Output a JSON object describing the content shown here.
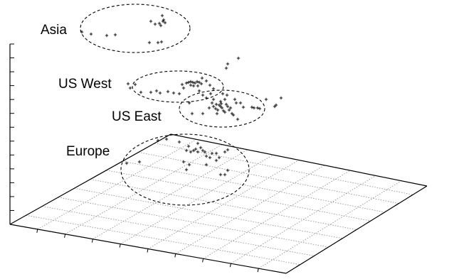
{
  "chart_data": {
    "type": "scatter",
    "variant": "3d-scatter-perspective",
    "grid": true,
    "z_axis_ticks": 13,
    "clusters": [
      {
        "name": "Asia",
        "points": [
          [
            115,
            45
          ],
          [
            128,
            48
          ],
          [
            150,
            50
          ],
          [
            162,
            49
          ],
          [
            212,
            30
          ],
          [
            218,
            34
          ],
          [
            224,
            33
          ],
          [
            228,
            22
          ],
          [
            229,
            30
          ],
          [
            230,
            28
          ],
          [
            226,
            36
          ],
          [
            232,
            32
          ],
          [
            210,
            60
          ],
          [
            222,
            60
          ],
          [
            227,
            59
          ]
        ]
      },
      {
        "name": "US West",
        "points": [
          [
            180,
            118
          ],
          [
            183,
            124
          ],
          [
            190,
            119
          ],
          [
            198,
            130
          ],
          [
            212,
            130
          ],
          [
            220,
            128
          ],
          [
            225,
            131
          ],
          [
            236,
            129
          ],
          [
            244,
            131
          ],
          [
            252,
            132
          ],
          [
            256,
            119
          ],
          [
            262,
            117
          ],
          [
            265,
            116
          ],
          [
            268,
            115
          ],
          [
            271,
            116
          ],
          [
            274,
            117
          ],
          [
            277,
            115
          ],
          [
            280,
            116
          ],
          [
            283,
            118
          ],
          [
            268,
            120
          ],
          [
            272,
            121
          ],
          [
            278,
            121
          ],
          [
            258,
            124
          ],
          [
            284,
            110
          ],
          [
            290,
            114
          ],
          [
            295,
            120
          ],
          [
            300,
            125
          ]
        ]
      },
      {
        "name": "US East",
        "points": [
          [
            335,
            82
          ],
          [
            320,
            90
          ],
          [
            318,
            96
          ],
          [
            285,
            134
          ],
          [
            290,
            138
          ],
          [
            298,
            145
          ],
          [
            300,
            150
          ],
          [
            303,
            153
          ],
          [
            306,
            155
          ],
          [
            308,
            148
          ],
          [
            310,
            150
          ],
          [
            312,
            152
          ],
          [
            314,
            156
          ],
          [
            316,
            158
          ],
          [
            318,
            147
          ],
          [
            320,
            150
          ],
          [
            322,
            155
          ],
          [
            324,
            152
          ],
          [
            326,
            160
          ],
          [
            328,
            162
          ],
          [
            330,
            140
          ],
          [
            332,
            145
          ],
          [
            316,
            140
          ],
          [
            310,
            143
          ],
          [
            300,
            140
          ],
          [
            294,
            152
          ],
          [
            305,
            160
          ],
          [
            296,
            132
          ],
          [
            280,
            128
          ],
          [
            266,
            145
          ],
          [
            270,
            160
          ],
          [
            285,
            160
          ],
          [
            338,
            145
          ],
          [
            334,
            168
          ],
          [
            342,
            151
          ],
          [
            354,
            151
          ],
          [
            357,
            152
          ],
          [
            362,
            152
          ],
          [
            365,
            153
          ],
          [
            374,
            140
          ],
          [
            386,
            150
          ],
          [
            388,
            148
          ],
          [
            395,
            138
          ],
          [
            313,
            132
          ],
          [
            319,
            134
          ],
          [
            304,
            147
          ],
          [
            311,
            146
          ]
        ]
      },
      {
        "name": "Europe",
        "points": [
          [
            222,
            198
          ],
          [
            234,
            196
          ],
          [
            252,
            200
          ],
          [
            262,
            212
          ],
          [
            265,
            206
          ],
          [
            268,
            214
          ],
          [
            272,
            212
          ],
          [
            275,
            210
          ],
          [
            278,
            214
          ],
          [
            278,
            202
          ],
          [
            282,
            208
          ],
          [
            285,
            212
          ],
          [
            288,
            214
          ],
          [
            290,
            220
          ],
          [
            298,
            216
          ],
          [
            304,
            216
          ],
          [
            316,
            214
          ],
          [
            320,
            211
          ],
          [
            258,
            228
          ],
          [
            262,
            239
          ],
          [
            266,
            232
          ],
          [
            290,
            232
          ],
          [
            295,
            222
          ],
          [
            304,
            226
          ],
          [
            308,
            222
          ],
          [
            310,
            246
          ],
          [
            316,
            246
          ],
          [
            320,
            240
          ],
          [
            196,
            228
          ],
          [
            178,
            230
          ]
        ]
      }
    ]
  },
  "labels": {
    "asia": "Asia",
    "us_west": "US West",
    "us_east": "US East",
    "europe": "Europe"
  }
}
